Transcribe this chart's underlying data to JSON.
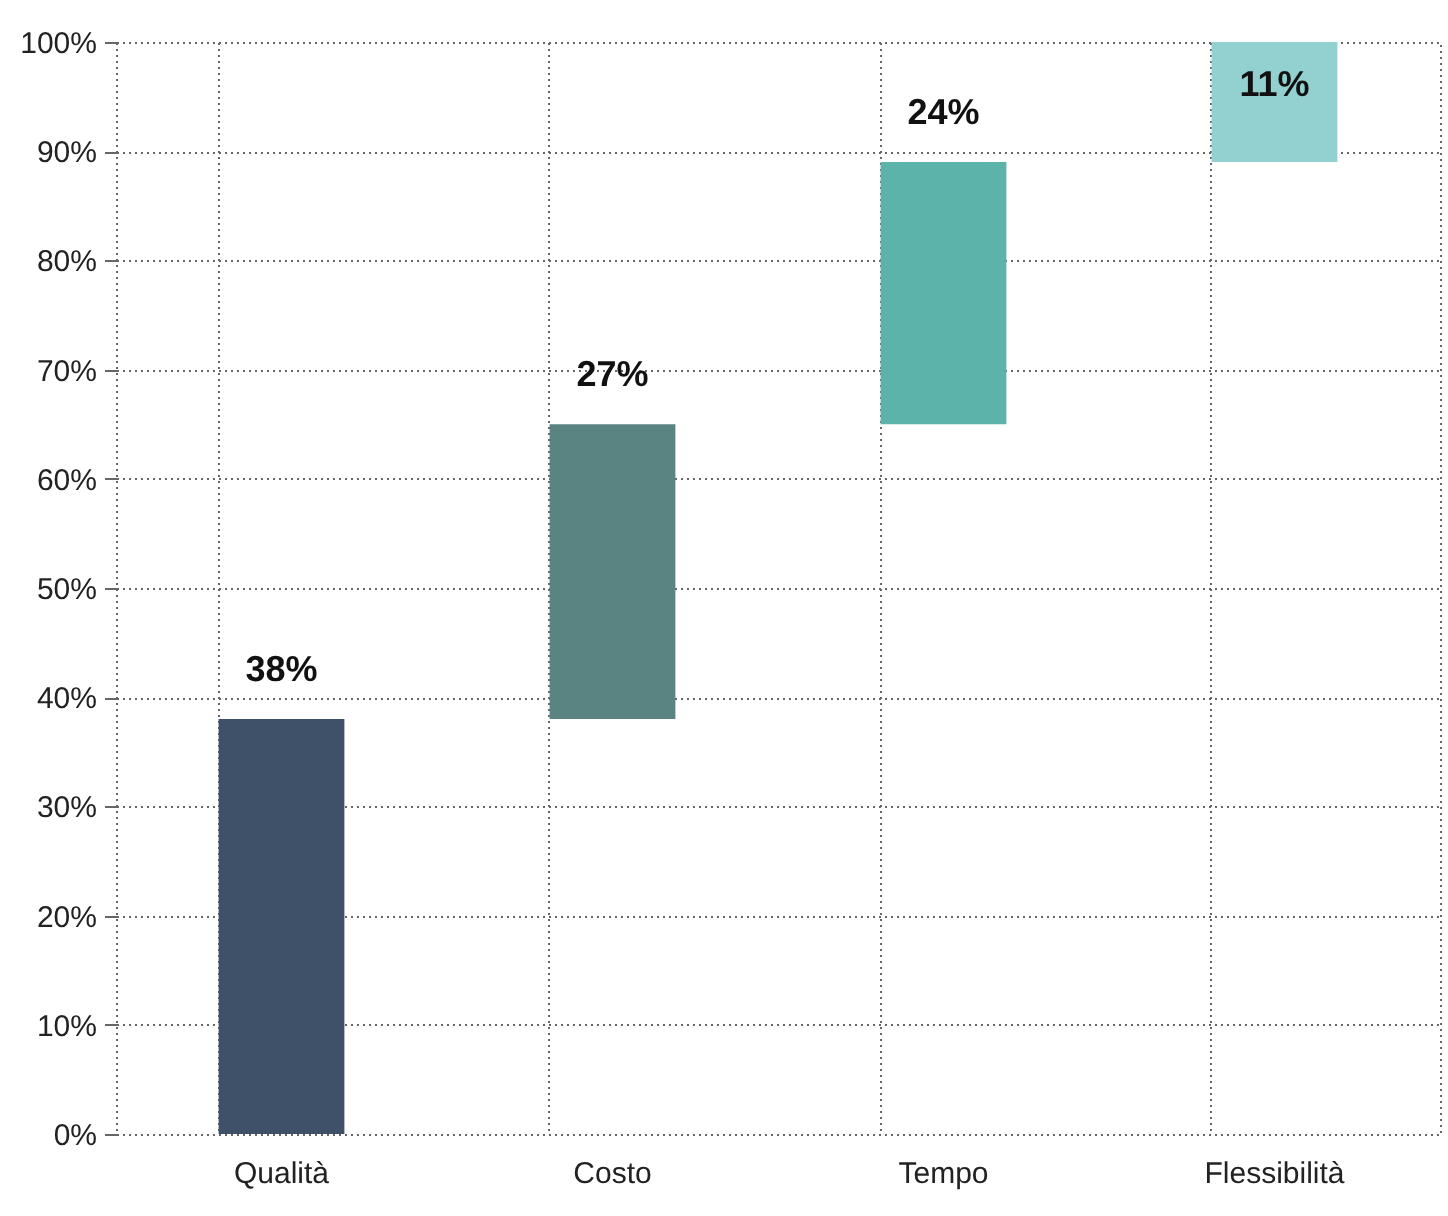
{
  "chart_data": {
    "type": "bar",
    "categories": [
      "Qualità",
      "Costo",
      "Tempo",
      "Flessibilità"
    ],
    "values": [
      38,
      27,
      24,
      11
    ],
    "base": [
      0,
      38,
      65,
      89
    ],
    "colors": [
      "#3f5168",
      "#5a8481",
      "#5bb3a9",
      "#93d1d1"
    ],
    "value_labels": [
      "38%",
      "27%",
      "24%",
      "11%"
    ],
    "ylim": [
      0,
      100
    ],
    "yticks": [
      {
        "value": 0,
        "label": "0%"
      },
      {
        "value": 10,
        "label": "10%"
      },
      {
        "value": 20,
        "label": "20%"
      },
      {
        "value": 30,
        "label": "30%"
      },
      {
        "value": 40,
        "label": "40%"
      },
      {
        "value": 50,
        "label": "50%"
      },
      {
        "value": 60,
        "label": "60%"
      },
      {
        "value": 70,
        "label": "70%"
      },
      {
        "value": 80,
        "label": "80%"
      },
      {
        "value": 90,
        "label": "90%"
      },
      {
        "value": 100,
        "label": "100%"
      }
    ],
    "grid": true,
    "legend": false
  }
}
